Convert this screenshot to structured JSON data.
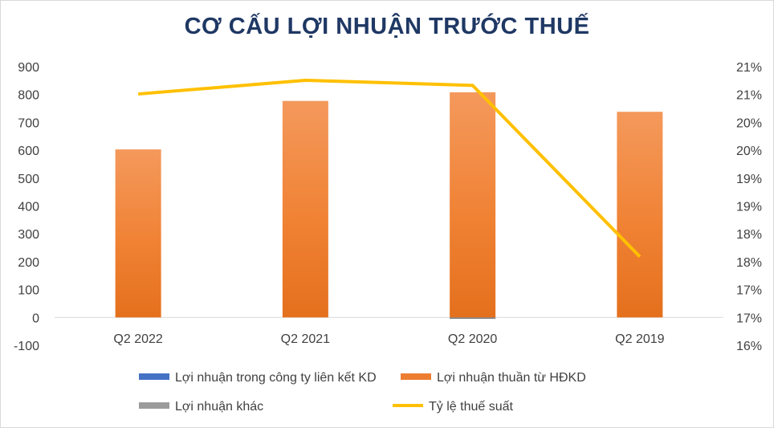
{
  "chart_data": {
    "type": "bar",
    "title": "CƠ CẤU LỢI NHUẬN TRƯỚC THUẾ",
    "categories": [
      "Q2 2022",
      "Q2 2021",
      "Q2 2020",
      "Q2 2019"
    ],
    "series": [
      {
        "name": "Lợi nhuận trong công ty liên kết KD",
        "kind": "bar",
        "axis": "left",
        "color": "#4472c4",
        "values": [
          0,
          0,
          0,
          0
        ]
      },
      {
        "name": "Lợi nhuận thuần từ HĐKD",
        "kind": "bar",
        "axis": "left",
        "color": "#ed7d31",
        "values": [
          603,
          777,
          808,
          738
        ]
      },
      {
        "name": "Lợi nhuận khác",
        "kind": "bar",
        "axis": "left",
        "color": "#a5a5a5",
        "values": [
          0,
          0,
          -5,
          0
        ]
      },
      {
        "name": "Tỷ lệ thuế suất",
        "kind": "line",
        "axis": "right",
        "color": "#ffc000",
        "values": [
          20.96,
          21.23,
          21.13,
          17.75
        ]
      }
    ],
    "y_left": {
      "min": -100,
      "max": 900,
      "step": 100,
      "ticks": [
        "-100",
        "0",
        "100",
        "200",
        "300",
        "400",
        "500",
        "600",
        "700",
        "800",
        "900"
      ]
    },
    "y_right": {
      "min": 16,
      "max": 21.5,
      "unit": "%",
      "ticks": [
        "16%",
        "17%",
        "17%",
        "18%",
        "18%",
        "19%",
        "19%",
        "20%",
        "20%",
        "21%",
        "21%"
      ]
    },
    "grid": false,
    "legend_position": "bottom"
  }
}
